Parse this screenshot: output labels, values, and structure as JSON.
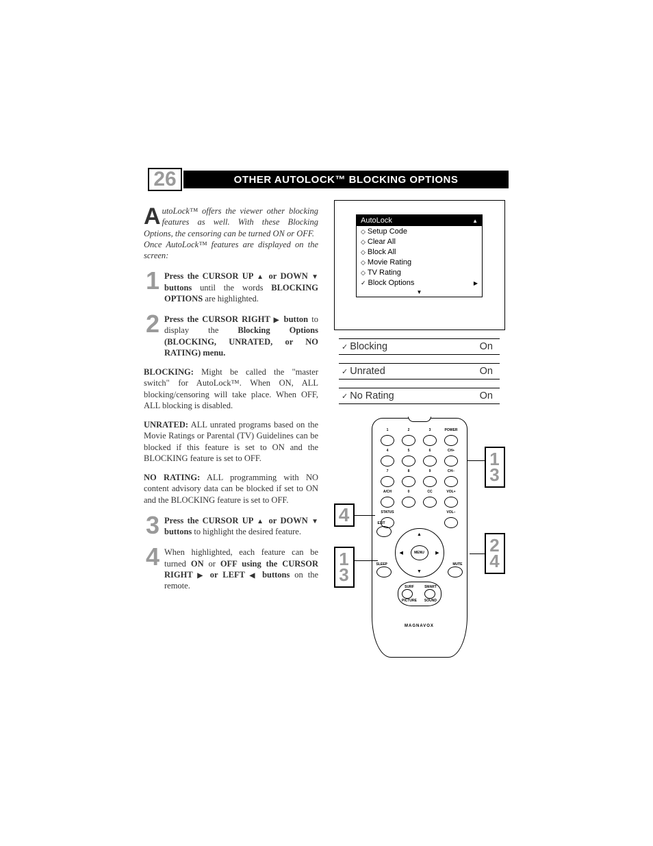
{
  "page_number": "26",
  "title": "OTHER AUTOLOCK™ BLOCKING OPTIONS",
  "intro": {
    "first": "A",
    "body": "utoLock™ offers the viewer other blocking features as well. With these Blocking Options, the censoring can be turned ON or OFF.",
    "body2": "Once AutoLock™ features are displayed on the screen:"
  },
  "steps": {
    "s1": {
      "n": "1",
      "html": "<b>Press the CURSOR UP <span class=\"arrow-up\"></span> or DOWN <span class=\"arrow-down\"></span> buttons</b> until the words <b>BLOCKING OPTIONS</b> are highlighted."
    },
    "s2": {
      "n": "2",
      "html": "<b>Press the CURSOR RIGHT <span class=\"arrow-right\"></span> button</b> to display the <b>Blocking Options (BLOCKING, UNRATED, or NO RATING) menu.</b>"
    },
    "s3": {
      "n": "3",
      "html": "<b>Press the CURSOR UP <span class=\"arrow-up\"></span> or DOWN <span class=\"arrow-down\"></span> buttons</b> to highlight the desired feature."
    },
    "s4": {
      "n": "4",
      "html": "When highlighted, each feature can be turned <b>ON</b> or <b>OFF using the CURSOR RIGHT <span class=\"arrow-right\"></span> or LEFT <span class=\"arrow-left\"></span> buttons</b> on the remote."
    }
  },
  "paras": {
    "blocking": "<b>BLOCKING:</b> Might be called the \"master switch\" for AutoLock™. When ON, ALL blocking/censoring will take place. When OFF, ALL blocking is disabled.",
    "unrated": "<b>UNRATED:</b> ALL unrated programs based on the Movie Ratings or Parental (TV) Guidelines can be blocked if this feature is set to ON and the BLOCKING feature is set to OFF.",
    "norating": "<b>NO RATING:</b> ALL programming with NO content advisory data can be blocked if set to ON and the BLOCKING feature is set to OFF."
  },
  "tv_menu": {
    "header": "AutoLock",
    "items": [
      {
        "icon": "diamond",
        "label": "Setup Code"
      },
      {
        "icon": "diamond",
        "label": "Clear All"
      },
      {
        "icon": "diamond",
        "label": "Block All"
      },
      {
        "icon": "diamond",
        "label": "Movie Rating"
      },
      {
        "icon": "diamond",
        "label": "TV Rating"
      },
      {
        "icon": "check",
        "label": "Block Options",
        "selected": true
      }
    ]
  },
  "options": [
    {
      "label": "Blocking",
      "value": "On"
    },
    {
      "label": "Unrated",
      "value": "On"
    },
    {
      "label": "No Rating",
      "value": "On"
    }
  ],
  "remote": {
    "brand": "MAGNAVOX",
    "row_labels": [
      [
        "1",
        "2",
        "3",
        "POWER"
      ],
      [
        "4",
        "5",
        "6",
        "CH+"
      ],
      [
        "7",
        "8",
        "9",
        "CH−"
      ],
      [
        "A/CH",
        "0",
        "CC",
        "VOL+"
      ],
      [
        "STATUS",
        "",
        "",
        "VOL−"
      ]
    ],
    "dpad_center": "MENU",
    "side": {
      "sleep": "SLEEP",
      "mute": "MUTE",
      "exit": "EXIT"
    },
    "bottom": {
      "surf": "SURF",
      "smart": "SMART",
      "picture": "PICTURE",
      "sound": "SOUND"
    }
  },
  "callouts": {
    "c13a": "1\n3",
    "c13b": "1\n3",
    "c24": "2\n4",
    "c4": "4"
  },
  "colors": {
    "number_gray": "#9a9a9a",
    "black": "#000000",
    "white": "#ffffff",
    "text": "#333333"
  }
}
